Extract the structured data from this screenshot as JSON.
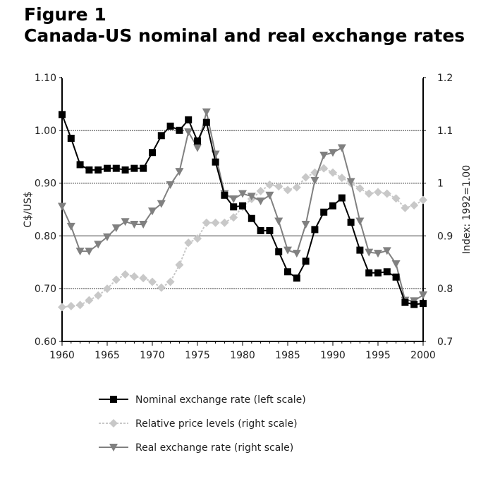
{
  "figure": {
    "label": "Figure 1",
    "title": "Canada-US nominal and real exchange rates"
  },
  "chart_data": {
    "type": "line",
    "x": [
      1960,
      1961,
      1962,
      1963,
      1964,
      1965,
      1966,
      1967,
      1968,
      1969,
      1970,
      1971,
      1972,
      1973,
      1974,
      1975,
      1976,
      1977,
      1978,
      1979,
      1980,
      1981,
      1982,
      1983,
      1984,
      1985,
      1986,
      1987,
      1988,
      1989,
      1990,
      1991,
      1992,
      1993,
      1994,
      1995,
      1996,
      1997,
      1998,
      1999,
      2000
    ],
    "xlim": [
      1960,
      2000
    ],
    "xticks": [
      "1960",
      "1965",
      "1970",
      "1975",
      "1980",
      "1985",
      "1990",
      "1995",
      "2000"
    ],
    "ylabel": "C$/US$",
    "ylim": [
      0.6,
      1.1
    ],
    "yticks": [
      "0.60",
      "0.70",
      "0.80",
      "0.90",
      "1.00",
      "1.10"
    ],
    "y2label": "Index: 1992=1.00",
    "y2lim": [
      0.7,
      1.2
    ],
    "y2ticks": [
      "0.7",
      "0.8",
      "0.9",
      "1",
      "1.1",
      "1.2"
    ],
    "grid": "horizontal",
    "legend": "bottom",
    "series": [
      {
        "name": "Nominal exchange rate (left scale)",
        "axis": "left",
        "color": "#000000",
        "marker": "square",
        "values": [
          1.03,
          0.985,
          0.935,
          0.925,
          0.925,
          0.928,
          0.928,
          0.925,
          0.928,
          0.928,
          0.958,
          0.99,
          1.008,
          1.0,
          1.02,
          0.98,
          1.015,
          0.94,
          0.877,
          0.855,
          0.857,
          0.833,
          0.81,
          0.81,
          0.77,
          0.732,
          0.72,
          0.752,
          0.812,
          0.845,
          0.857,
          0.872,
          0.826,
          0.773,
          0.73,
          0.73,
          0.732,
          0.722,
          0.674,
          0.67,
          0.672
        ]
      },
      {
        "name": "Relative price levels (right scale)",
        "axis": "right",
        "color": "#c8c8c8",
        "marker": "diamond",
        "values": [
          0.765,
          0.767,
          0.769,
          0.778,
          0.787,
          0.8,
          0.817,
          0.827,
          0.823,
          0.82,
          0.813,
          0.802,
          0.813,
          0.845,
          0.887,
          0.895,
          0.925,
          0.925,
          0.925,
          0.935,
          0.955,
          0.97,
          0.985,
          0.997,
          0.994,
          0.987,
          0.992,
          1.011,
          1.02,
          1.028,
          1.02,
          1.01,
          1.0,
          0.99,
          0.98,
          0.983,
          0.98,
          0.971,
          0.953,
          0.958,
          0.968
        ]
      },
      {
        "name": "Real exchange rate (right scale)",
        "axis": "right",
        "color": "#808080",
        "marker": "triangle-down",
        "values": [
          0.956,
          0.918,
          0.871,
          0.871,
          0.884,
          0.898,
          0.915,
          0.927,
          0.922,
          0.922,
          0.947,
          0.961,
          0.997,
          1.022,
          1.097,
          1.067,
          1.135,
          1.055,
          0.98,
          0.97,
          0.98,
          0.975,
          0.966,
          0.977,
          0.928,
          0.873,
          0.867,
          0.922,
          1.005,
          1.053,
          1.058,
          1.067,
          1.003,
          0.928,
          0.869,
          0.867,
          0.872,
          0.847,
          0.778,
          0.777,
          0.788
        ]
      }
    ]
  }
}
